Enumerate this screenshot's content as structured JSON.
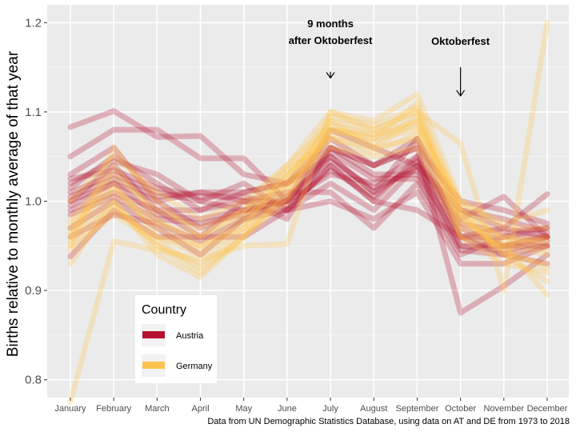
{
  "chart_data": {
    "type": "line",
    "ylabel": "Births relative to monthly average of that year",
    "xlabel": "",
    "caption": "Data from UN Demographic Statistics Database, using data on AT and DE from 1973 to 2018",
    "categories": [
      "January",
      "February",
      "March",
      "April",
      "May",
      "June",
      "July",
      "August",
      "September",
      "October",
      "November",
      "December"
    ],
    "ylim": [
      0.78,
      1.22
    ],
    "yticks": [
      0.8,
      0.9,
      1.0,
      1.1,
      1.2
    ],
    "ytick_labels": [
      "0.8",
      "0.9",
      "1.0",
      "1.1",
      "1.2"
    ],
    "grid": true,
    "legend": {
      "title": "Country",
      "position": "bottom-left",
      "entries": [
        {
          "label": "Austria",
          "color": "#b5122f"
        },
        {
          "label": "Germany",
          "color": "#fec44f"
        }
      ]
    },
    "annotations": [
      {
        "lines": [
          "9 months",
          "after Oktoberfest"
        ],
        "category": "July",
        "text_y": 1.195,
        "arrow_from": 1.145,
        "arrow_to": 1.138
      },
      {
        "lines": [
          "Oktoberfest"
        ],
        "category": "October",
        "text_y": 1.175,
        "arrow_from": 1.15,
        "arrow_to": 1.118
      }
    ],
    "series_groups": [
      {
        "name": "Austria",
        "color": "#b5122f",
        "lines": [
          [
            1.083,
            1.101,
            1.072,
            1.073,
            1.03,
            1.02,
            1.06,
            1.04,
            1.06,
            0.875,
            0.905,
            0.94
          ],
          [
            1.05,
            1.08,
            1.08,
            1.048,
            1.048,
            1.0,
            1.08,
            1.06,
            1.04,
            0.99,
            0.97,
            1.008
          ],
          [
            1.03,
            1.06,
            1.0,
            1.01,
            1.01,
            1.02,
            1.05,
            1.01,
            1.07,
            0.96,
            0.95,
            0.96
          ],
          [
            1.02,
            1.045,
            1.03,
            1.0,
            1.02,
            0.99,
            1.04,
            1.0,
            1.05,
            0.98,
            1.005,
            0.96
          ],
          [
            1.0,
            1.04,
            0.99,
            0.99,
            1.01,
            1.02,
            1.07,
            1.04,
            1.06,
            1.0,
            0.99,
            0.975
          ],
          [
            0.995,
            1.02,
            1.0,
            0.97,
            0.99,
            1.0,
            1.06,
            1.03,
            1.03,
            0.96,
            0.96,
            0.97
          ],
          [
            1.01,
            1.03,
            1.01,
            1.0,
            0.99,
            0.99,
            1.02,
            0.99,
            1.04,
            0.95,
            0.95,
            0.96
          ],
          [
            0.99,
            1.01,
            0.99,
            0.96,
            1.0,
            1.01,
            1.01,
            0.97,
            1.02,
            0.94,
            0.96,
            0.96
          ],
          [
            0.97,
            1.0,
            0.97,
            0.94,
            0.98,
            0.99,
            1.0,
            0.98,
            1.01,
            0.93,
            0.93,
            0.95
          ],
          [
            0.938,
            0.99,
            0.96,
            0.96,
            0.96,
            0.99,
            1.04,
            1.0,
            0.99,
            0.96,
            0.94,
            0.93
          ],
          [
            1.0,
            1.02,
            0.985,
            0.98,
            0.99,
            1.0,
            1.05,
            1.01,
            1.04,
            0.97,
            0.95,
            0.95
          ],
          [
            1.015,
            1.05,
            1.02,
            0.99,
            1.0,
            1.0,
            1.03,
            1.02,
            1.05,
            0.96,
            0.97,
            0.96
          ],
          [
            1.005,
            1.025,
            1.005,
            1.01,
            1.0,
            0.98,
            1.06,
            1.04,
            1.07,
            0.99,
            0.98,
            0.965
          ],
          [
            0.985,
            1.005,
            0.98,
            0.975,
            0.985,
            1.005,
            1.045,
            1.015,
            1.035,
            0.95,
            0.945,
            0.955
          ],
          [
            1.025,
            1.035,
            1.015,
            1.005,
            1.005,
            0.995,
            1.035,
            1.005,
            1.045,
            0.975,
            0.965,
            0.97
          ],
          [
            0.96,
            0.985,
            0.975,
            0.955,
            0.98,
            1.0,
            1.055,
            1.025,
            1.025,
            0.945,
            0.94,
            0.95
          ]
        ]
      },
      {
        "name": "Germany",
        "color": "#fec44f",
        "lines": [
          [
            0.775,
            0.955,
            0.945,
            0.935,
            0.95,
            0.952,
            1.1,
            1.08,
            1.1,
            1.065,
            0.9,
            1.2
          ],
          [
            0.93,
            1.0,
            0.95,
            0.92,
            0.96,
            1.0,
            1.08,
            1.07,
            1.11,
            0.96,
            0.95,
            0.895
          ],
          [
            0.95,
            1.06,
            1.0,
            0.96,
            0.99,
            1.04,
            1.1,
            1.09,
            1.12,
            1.0,
            0.97,
            0.97
          ],
          [
            0.96,
            1.04,
            0.98,
            0.95,
            0.98,
            1.02,
            1.09,
            1.06,
            1.09,
            0.99,
            0.96,
            0.95
          ],
          [
            0.97,
            1.02,
            0.96,
            0.94,
            0.97,
            1.03,
            1.08,
            1.07,
            1.08,
            0.98,
            0.95,
            0.94
          ],
          [
            0.98,
            1.03,
            0.99,
            0.97,
            0.99,
            1.03,
            1.07,
            1.06,
            1.07,
            0.97,
            0.95,
            0.96
          ],
          [
            0.96,
            1.0,
            0.94,
            0.915,
            0.96,
            1.01,
            1.09,
            1.08,
            1.1,
            0.99,
            0.94,
            0.93
          ],
          [
            0.95,
            0.99,
            0.96,
            0.95,
            0.97,
            1.02,
            1.06,
            1.05,
            1.06,
            0.96,
            0.93,
            0.92
          ],
          [
            1.0,
            1.05,
            1.01,
            0.98,
            1.0,
            1.04,
            1.085,
            1.075,
            1.085,
            1.0,
            0.975,
            0.99
          ],
          [
            0.945,
            0.985,
            0.955,
            0.925,
            0.96,
            1.015,
            1.075,
            1.065,
            1.095,
            0.985,
            0.945,
            0.925
          ],
          [
            0.975,
            1.015,
            0.975,
            0.96,
            0.985,
            1.025,
            1.095,
            1.085,
            1.105,
            0.995,
            0.955,
            0.945
          ],
          [
            0.965,
            1.01,
            0.97,
            0.945,
            0.975,
            1.035,
            1.07,
            1.055,
            1.075,
            0.975,
            0.96,
            0.955
          ],
          [
            0.955,
            0.995,
            0.95,
            0.93,
            0.965,
            1.005,
            1.08,
            1.075,
            1.09,
            0.985,
            0.94,
            0.91
          ]
        ]
      }
    ]
  }
}
